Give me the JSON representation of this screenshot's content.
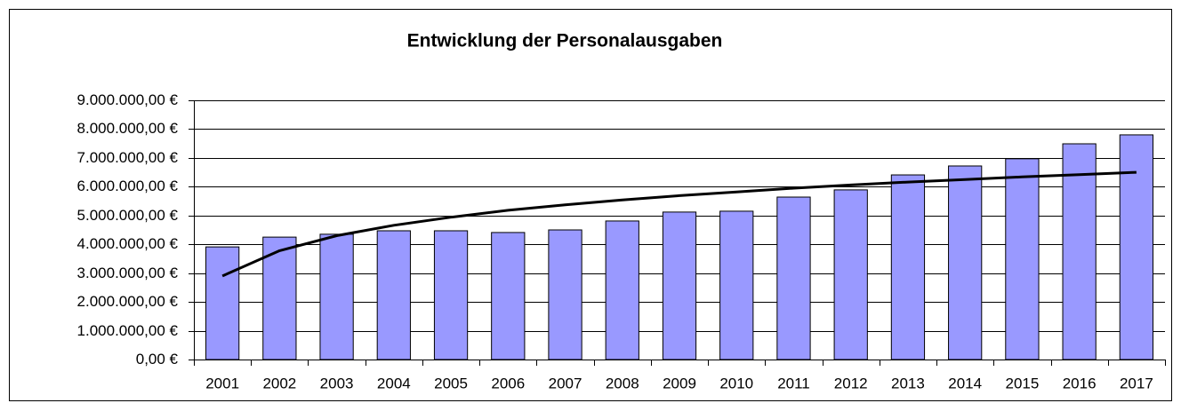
{
  "chart_data": {
    "type": "bar",
    "title": "Entwicklung der Personalausgaben",
    "categories": [
      "2001",
      "2002",
      "2003",
      "2004",
      "2005",
      "2006",
      "2007",
      "2008",
      "2009",
      "2010",
      "2011",
      "2012",
      "2013",
      "2014",
      "2015",
      "2016",
      "2017"
    ],
    "values": [
      3910000,
      4250000,
      4350000,
      4470000,
      4470000,
      4410000,
      4500000,
      4810000,
      5120000,
      5150000,
      5640000,
      5890000,
      6410000,
      6720000,
      6970000,
      7490000,
      7800000
    ],
    "color": "#9999ff",
    "trendline": {
      "color": "#000000",
      "values": [
        2900000,
        3780000,
        4300000,
        4660000,
        4940000,
        5180000,
        5370000,
        5540000,
        5690000,
        5820000,
        5950000,
        6060000,
        6160000,
        6250000,
        6340000,
        6420000,
        6500000
      ]
    },
    "ylim": [
      0,
      9000000
    ],
    "yticks": [
      {
        "value": 0,
        "label": "0,00 €"
      },
      {
        "value": 1000000,
        "label": "1.000.000,00 €"
      },
      {
        "value": 2000000,
        "label": "2.000.000,00 €"
      },
      {
        "value": 3000000,
        "label": "3.000.000,00 €"
      },
      {
        "value": 4000000,
        "label": "4.000.000,00 €"
      },
      {
        "value": 5000000,
        "label": "5.000.000,00 €"
      },
      {
        "value": 6000000,
        "label": "6.000.000,00 €"
      },
      {
        "value": 7000000,
        "label": "7.000.000,00 €"
      },
      {
        "value": 8000000,
        "label": "8.000.000,00 €"
      },
      {
        "value": 9000000,
        "label": "9.000.000,00 €"
      }
    ],
    "grid": true
  }
}
